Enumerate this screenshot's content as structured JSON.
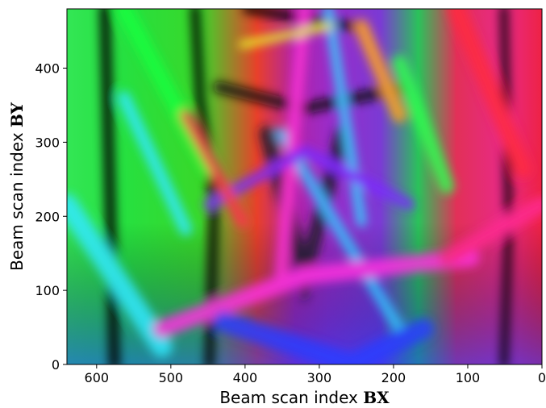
{
  "chart_data": {
    "type": "heatmap",
    "title": "",
    "xlabel": "Beam scan index BX",
    "xlabel_prefix": "Beam scan index ",
    "xlabel_symbol": "BX",
    "ylabel": "Beam scan index BY",
    "ylabel_prefix": "Beam scan index ",
    "ylabel_symbol": "BY",
    "xlim": [
      640,
      0
    ],
    "ylim": [
      0,
      480
    ],
    "x_inverted": true,
    "x_ticks": [
      600,
      500,
      400,
      300,
      200,
      100,
      0
    ],
    "y_ticks": [
      0,
      100,
      200,
      300,
      400
    ],
    "colormap": "hsv orientation map",
    "grid": false,
    "legend": "none"
  }
}
